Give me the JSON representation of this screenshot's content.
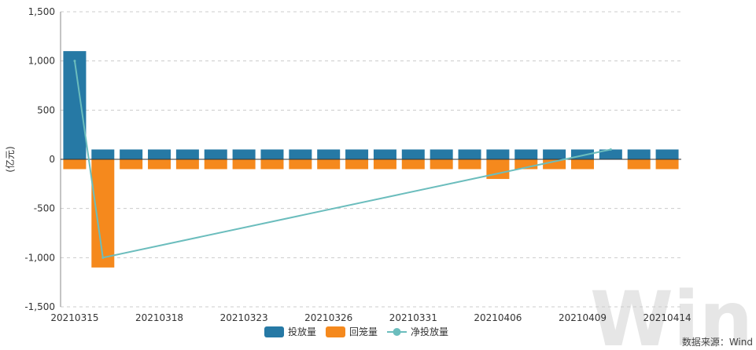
{
  "chart_data": {
    "type": "bar",
    "ylabel": "(亿元)",
    "ylim": [
      -1500,
      1500
    ],
    "yticks": [
      -1500,
      -1000,
      -500,
      0,
      500,
      1000,
      1500
    ],
    "ytick_labels": [
      "-1,500",
      "-1,000",
      "-500",
      "0",
      "500",
      "1,000",
      "1,500"
    ],
    "grid": true,
    "legend_position": "bottom",
    "x_tick_labels": [
      "20210315",
      "20210318",
      "20210323",
      "20210326",
      "20210331",
      "20210406",
      "20210409",
      "20210414"
    ],
    "x_tick_indices": [
      0,
      3,
      6,
      9,
      12,
      15,
      18,
      21
    ],
    "categories_count": 22,
    "series": [
      {
        "name": "投放量",
        "type": "bar",
        "color": "#2679a5",
        "values": [
          1100,
          100,
          100,
          100,
          100,
          100,
          100,
          100,
          100,
          100,
          100,
          100,
          100,
          100,
          100,
          100,
          100,
          100,
          100,
          100,
          100,
          100
        ]
      },
      {
        "name": "回笼量",
        "type": "bar",
        "color": "#f5891d",
        "values": [
          -100,
          -1100,
          -100,
          -100,
          -100,
          -100,
          -100,
          -100,
          -100,
          -100,
          -100,
          -100,
          -100,
          -100,
          -100,
          -200,
          -100,
          -100,
          -100,
          0,
          -100,
          -100
        ]
      },
      {
        "name": "净投放量",
        "type": "line",
        "color": "#6bbdbd",
        "points": [
          [
            0,
            1000
          ],
          [
            1,
            -1000
          ],
          [
            19,
            100
          ]
        ]
      }
    ]
  },
  "footer": {
    "source": "数据来源：Wind",
    "watermark": "Wind"
  }
}
